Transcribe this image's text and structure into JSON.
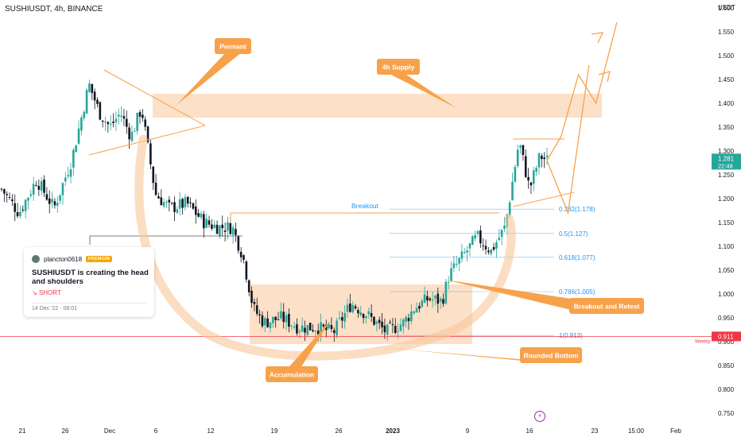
{
  "header": {
    "symbol_line": "SUSHIUSDT, 4h, BINANCE"
  },
  "idea_card": {
    "author": "plancton0618",
    "badge": "PREMIUM",
    "headline": "SUSHIUSDT is creating the head and shoulders",
    "direction": "SHORT",
    "date": "14 Dec '22 · 08:01"
  },
  "price_axis": {
    "unit_label": "USDT",
    "ticks": [
      "1.600",
      "1.550",
      "1.500",
      "1.450",
      "1.400",
      "1.350",
      "1.300",
      "1.250",
      "1.200",
      "1.150",
      "1.100",
      "1.050",
      "1.000",
      "0.950",
      "0.900",
      "0.850",
      "0.800",
      "0.750"
    ]
  },
  "time_axis": {
    "ticks": [
      "21",
      "26",
      "Dec",
      "6",
      "12",
      "19",
      "26",
      "2023",
      "9",
      "16",
      "23",
      "15:00",
      "Feb"
    ]
  },
  "current_price": {
    "price": "1.281",
    "countdown": "22:48",
    "color": "#26a69a"
  },
  "weekly_level": {
    "label": "Weekly",
    "price": "0.911",
    "color": "#f23645"
  },
  "fib_levels": [
    {
      "label": "0.382(1.178)",
      "price": 1.178
    },
    {
      "label": "0.5(1.127)",
      "price": 1.127
    },
    {
      "label": "0.618(1.077)",
      "price": 1.077
    },
    {
      "label": "0.786(1.005)",
      "price": 1.005
    },
    {
      "label": "1(0.913)",
      "price": 0.913
    }
  ],
  "annotations": {
    "pennant": "Pennant",
    "supply": "4h Supply",
    "breakout": "Breakout",
    "breakout_retest": "Breakout and Retest",
    "rounded_bottom": "Rounded Bottom",
    "accumulation": "Accumulation"
  },
  "colors": {
    "up": "#26a69a",
    "down": "#131722",
    "annotation": "#f7a24b",
    "zone": "#f9c79a",
    "fib": "#2196f3"
  },
  "chart_data": {
    "type": "candlestick",
    "symbol": "SUSHIUSDT",
    "interval": "4h",
    "exchange": "BINANCE",
    "ylim": [
      0.72,
      1.62
    ],
    "y_ticks": [
      1.6,
      1.55,
      1.5,
      1.45,
      1.4,
      1.35,
      1.3,
      1.25,
      1.2,
      1.15,
      1.1,
      1.05,
      1.0,
      0.95,
      0.9,
      0.85,
      0.8,
      0.75
    ],
    "x_ticks": [
      "21",
      "26",
      "Dec",
      "6",
      "12",
      "19",
      "26",
      "2023",
      "9",
      "16",
      "23",
      "15:00",
      "Feb"
    ],
    "close_path": [
      {
        "d": 0,
        "c": 1.22
      },
      {
        "d": 5,
        "c": 1.17
      },
      {
        "d": 10,
        "c": 1.24
      },
      {
        "d": 15,
        "c": 1.18
      },
      {
        "d": 20,
        "c": 1.28
      },
      {
        "d": 25,
        "c": 1.44
      },
      {
        "d": 28,
        "c": 1.38
      },
      {
        "d": 31,
        "c": 1.35
      },
      {
        "d": 34,
        "c": 1.38
      },
      {
        "d": 37,
        "c": 1.33
      },
      {
        "d": 40,
        "c": 1.39
      },
      {
        "d": 42,
        "c": 1.3
      },
      {
        "d": 44,
        "c": 1.21
      },
      {
        "d": 48,
        "c": 1.18
      },
      {
        "d": 53,
        "c": 1.19
      },
      {
        "d": 58,
        "c": 1.15
      },
      {
        "d": 62,
        "c": 1.14
      },
      {
        "d": 66,
        "c": 1.14
      },
      {
        "d": 69,
        "c": 1.08
      },
      {
        "d": 72,
        "c": 0.97
      },
      {
        "d": 75,
        "c": 0.94
      },
      {
        "d": 80,
        "c": 0.95
      },
      {
        "d": 85,
        "c": 0.93
      },
      {
        "d": 90,
        "c": 0.93
      },
      {
        "d": 95,
        "c": 0.92
      },
      {
        "d": 100,
        "c": 0.98
      },
      {
        "d": 104,
        "c": 0.96
      },
      {
        "d": 110,
        "c": 0.92
      },
      {
        "d": 115,
        "c": 0.94
      },
      {
        "d": 118,
        "c": 0.97
      },
      {
        "d": 122,
        "c": 0.99
      },
      {
        "d": 126,
        "c": 0.985
      },
      {
        "d": 128,
        "c": 1.04
      },
      {
        "d": 132,
        "c": 1.08
      },
      {
        "d": 136,
        "c": 1.12
      },
      {
        "d": 140,
        "c": 1.09
      },
      {
        "d": 144,
        "c": 1.14
      },
      {
        "d": 148,
        "c": 1.32
      },
      {
        "d": 151,
        "c": 1.22
      },
      {
        "d": 154,
        "c": 1.29
      },
      {
        "d": 156,
        "c": 1.28
      }
    ],
    "projection": [
      {
        "d": 156,
        "c": 1.28
      },
      {
        "d": 162,
        "c": 1.17
      },
      {
        "d": 168,
        "c": 1.48
      }
    ],
    "projection_alt": [
      {
        "d": 156,
        "c": 1.28
      },
      {
        "d": 160,
        "c": 1.33
      },
      {
        "d": 165,
        "c": 1.46
      },
      {
        "d": 170,
        "c": 1.4
      },
      {
        "d": 176,
        "c": 1.57
      }
    ],
    "supply_zone": {
      "price_low": 1.37,
      "price_high": 1.42
    },
    "accumulation_zone": {
      "price_low": 0.895,
      "price_high": 1.02
    },
    "breakout_price": 1.17,
    "weekly_price": 0.911,
    "current_price": 1.281,
    "grid": false
  }
}
